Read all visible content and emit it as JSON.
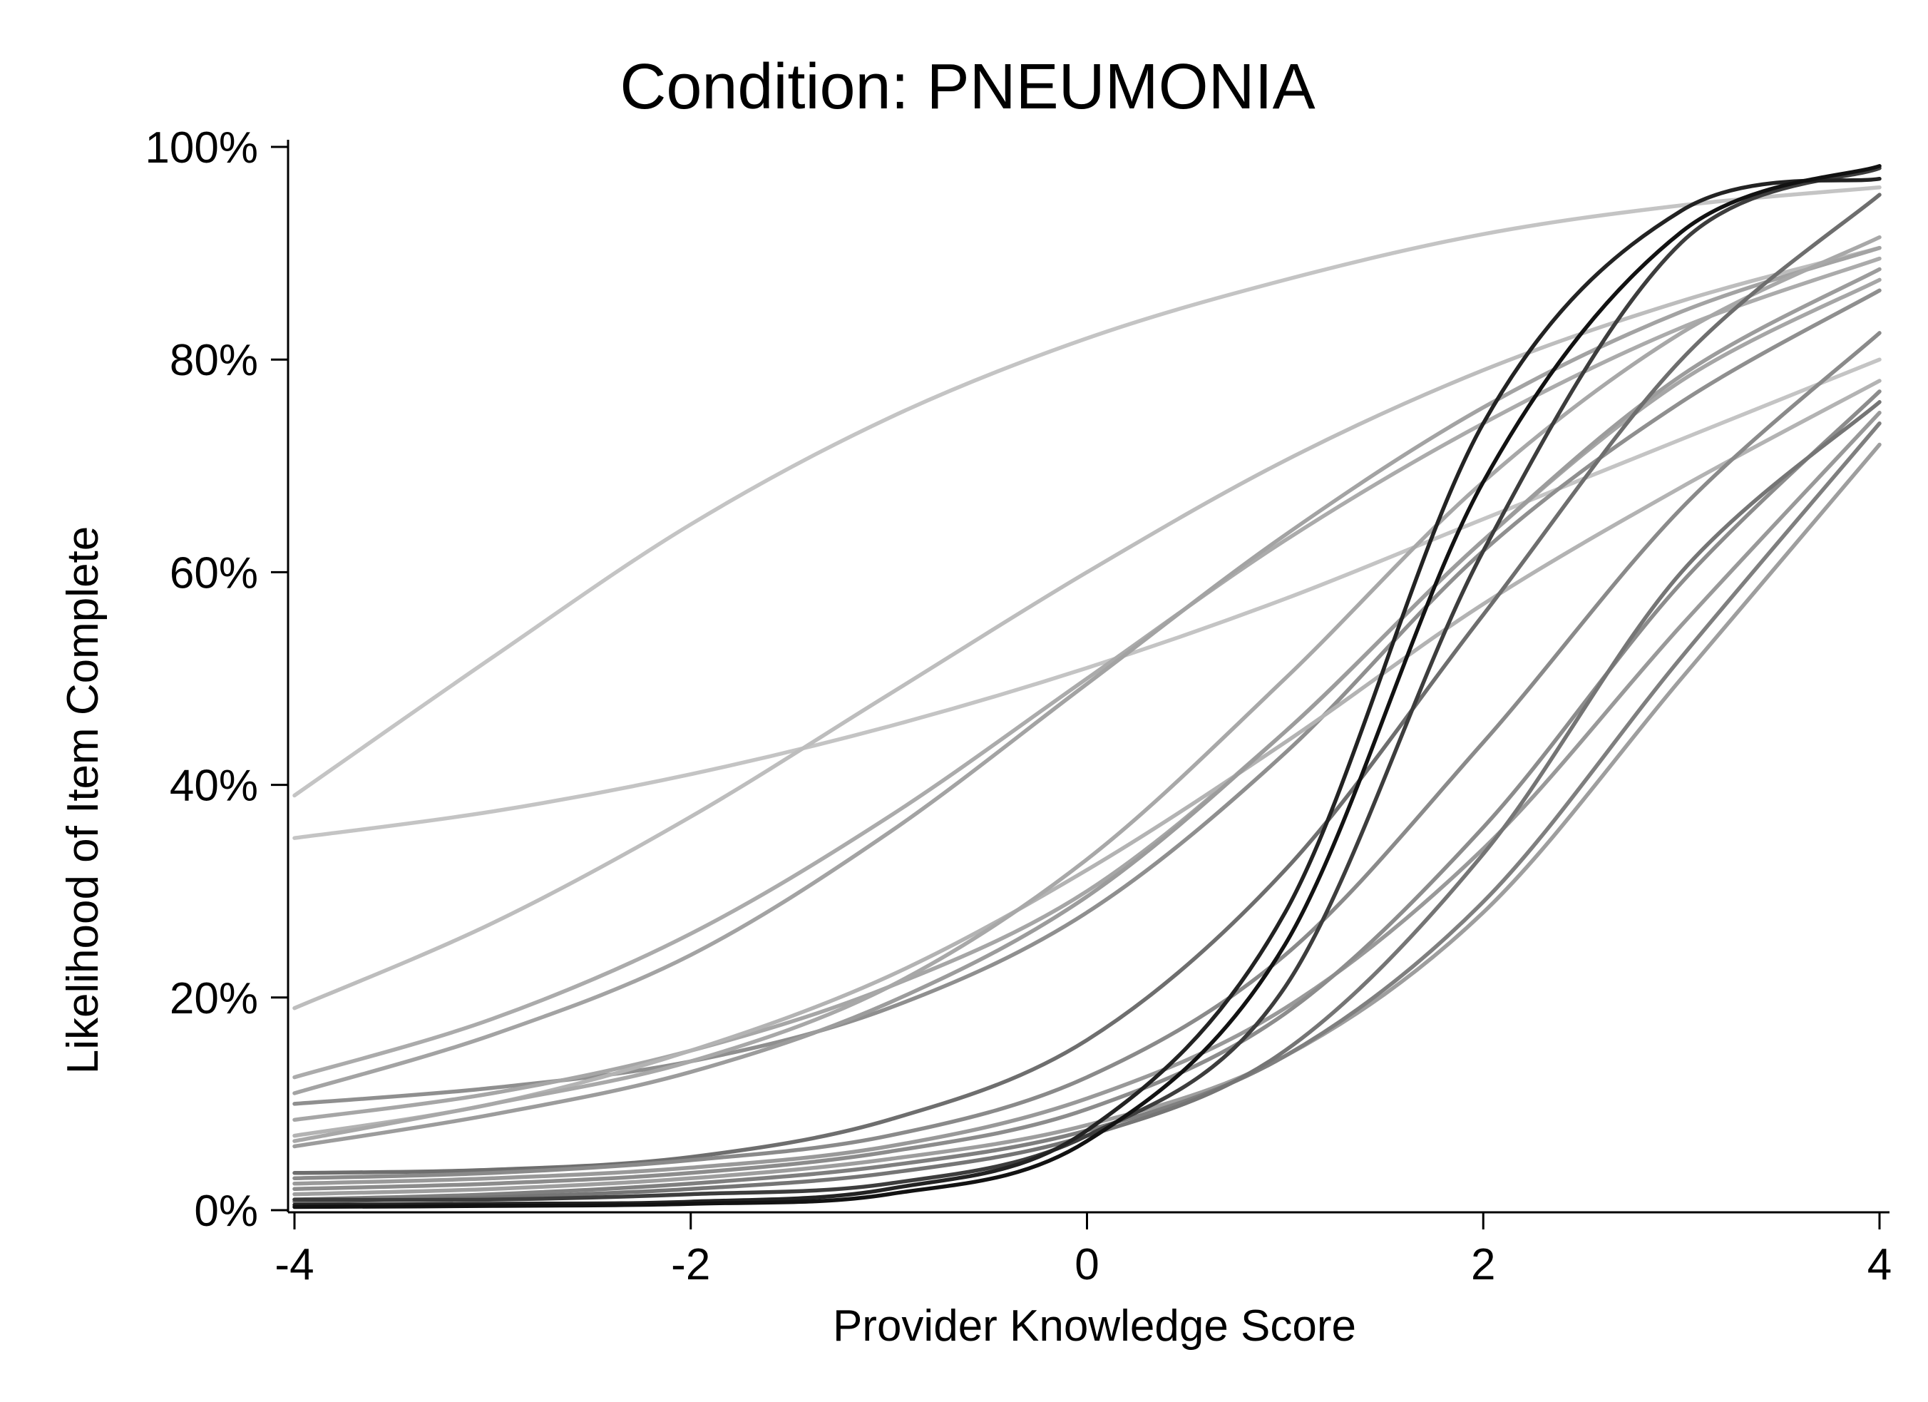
{
  "chart_data": {
    "type": "line",
    "title": "Condition: PNEUMONIA",
    "xlabel": "Provider Knowledge Score",
    "ylabel": "Likelihood of Item Complete",
    "xlim": [
      -4,
      4
    ],
    "ylim": [
      0,
      100
    ],
    "x_ticks": [
      -4,
      -2,
      0,
      2,
      4
    ],
    "x_tick_labels": [
      "-4",
      "-2",
      "0",
      "2",
      "4"
    ],
    "y_ticks": [
      0,
      20,
      40,
      60,
      80,
      100
    ],
    "y_tick_labels": [
      "0%",
      "20%",
      "40%",
      "60%",
      "80%",
      "100%"
    ],
    "grid": false,
    "legend": "none",
    "x": [
      -4,
      -3,
      -2,
      -1,
      0,
      1,
      2,
      3,
      4
    ],
    "series": [
      {
        "color": "#c4c4c4",
        "values": [
          39.0,
          52.0,
          64.5,
          74.5,
          82.0,
          87.5,
          91.8,
          94.5,
          96.2
        ]
      },
      {
        "color": "#c4c4c4",
        "values": [
          35.0,
          37.5,
          41.0,
          45.5,
          51.0,
          57.5,
          65.0,
          72.5,
          80.0
        ]
      },
      {
        "color": "#bdbdbd",
        "values": [
          19.0,
          27.0,
          37.0,
          48.5,
          60.0,
          70.5,
          79.0,
          85.5,
          90.5
        ]
      },
      {
        "color": "#ababab",
        "values": [
          12.5,
          18.0,
          26.0,
          37.0,
          50.0,
          63.0,
          74.0,
          83.0,
          89.5
        ]
      },
      {
        "color": "#a3a3a3",
        "values": [
          11.0,
          16.5,
          24.0,
          35.5,
          49.5,
          63.5,
          75.5,
          84.5,
          90.5
        ]
      },
      {
        "color": "#8f8f8f",
        "values": [
          10.0,
          11.5,
          14.0,
          19.0,
          28.0,
          43.0,
          62.0,
          76.0,
          86.5
        ]
      },
      {
        "color": "#a6a6a6",
        "values": [
          8.5,
          11.0,
          15.0,
          21.0,
          30.0,
          45.0,
          63.0,
          78.0,
          87.5
        ]
      },
      {
        "color": "#b3b3b3",
        "values": [
          7.0,
          10.0,
          15.0,
          22.0,
          32.0,
          44.0,
          57.0,
          68.0,
          78.0
        ]
      },
      {
        "color": "#a8a8a8",
        "values": [
          6.5,
          10.0,
          14.0,
          21.0,
          33.0,
          50.0,
          68.5,
          82.5,
          91.5
        ]
      },
      {
        "color": "#9c9c9c",
        "values": [
          6.0,
          9.0,
          13.0,
          19.5,
          29.5,
          45.0,
          63.0,
          78.5,
          88.5
        ]
      },
      {
        "color": "#6e6e6e",
        "values": [
          3.5,
          3.8,
          5.0,
          8.5,
          16.0,
          32.0,
          56.0,
          80.0,
          95.5
        ]
      },
      {
        "color": "#8a8a8a",
        "values": [
          3.0,
          3.5,
          4.7,
          7.0,
          12.5,
          24.0,
          44.0,
          66.0,
          82.5
        ]
      },
      {
        "color": "#999999",
        "values": [
          2.5,
          3.0,
          4.0,
          6.0,
          10.5,
          19.0,
          34.0,
          55.0,
          75.0
        ]
      },
      {
        "color": "#8c8c8c",
        "values": [
          2.0,
          2.5,
          3.5,
          5.5,
          9.5,
          18.5,
          36.0,
          59.0,
          77.0
        ]
      },
      {
        "color": "#9e9e9e",
        "values": [
          1.5,
          2.0,
          3.0,
          4.8,
          8.0,
          14.5,
          28.0,
          50.0,
          72.0
        ]
      },
      {
        "color": "#7f7f7f",
        "values": [
          1.0,
          1.5,
          2.5,
          4.2,
          7.5,
          14.5,
          29.0,
          52.0,
          74.0
        ]
      },
      {
        "color": "#757575",
        "values": [
          0.8,
          1.2,
          2.0,
          3.5,
          7.0,
          15.0,
          33.5,
          60.0,
          76.0
        ]
      },
      {
        "color": "#3d3d3d",
        "values": [
          1.0,
          1.0,
          1.5,
          2.5,
          7.0,
          21.0,
          62.0,
          91.0,
          98.0
        ]
      },
      {
        "color": "#232323",
        "values": [
          0.5,
          0.6,
          0.8,
          2.0,
          7.5,
          28.0,
          74.0,
          94.0,
          97.0
        ]
      },
      {
        "color": "#121212",
        "values": [
          0.3,
          0.4,
          0.6,
          1.5,
          6.5,
          25.0,
          68.5,
          92.0,
          98.2
        ]
      }
    ]
  }
}
